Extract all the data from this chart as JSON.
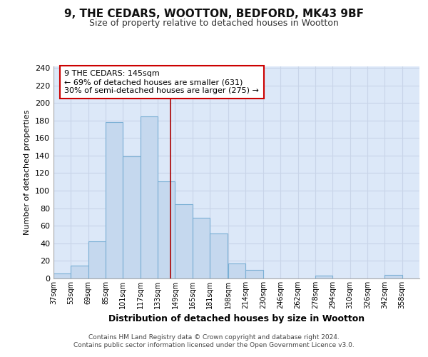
{
  "title": "9, THE CEDARS, WOOTTON, BEDFORD, MK43 9BF",
  "subtitle": "Size of property relative to detached houses in Wootton",
  "xlabel": "Distribution of detached houses by size in Wootton",
  "ylabel": "Number of detached properties",
  "bin_labels": [
    "37sqm",
    "53sqm",
    "69sqm",
    "85sqm",
    "101sqm",
    "117sqm",
    "133sqm",
    "149sqm",
    "165sqm",
    "181sqm",
    "198sqm",
    "214sqm",
    "230sqm",
    "246sqm",
    "262sqm",
    "278sqm",
    "294sqm",
    "310sqm",
    "326sqm",
    "342sqm",
    "358sqm"
  ],
  "bin_edges": [
    37,
    53,
    69,
    85,
    101,
    117,
    133,
    149,
    165,
    181,
    198,
    214,
    230,
    246,
    262,
    278,
    294,
    310,
    326,
    342,
    358
  ],
  "bar_heights": [
    6,
    15,
    42,
    178,
    139,
    185,
    111,
    85,
    69,
    51,
    17,
    10,
    0,
    0,
    0,
    3,
    0,
    0,
    0,
    4,
    0
  ],
  "bar_color": "#c5d8ee",
  "bar_edge_color": "#7aafd4",
  "vline_x": 145,
  "vline_color": "#aa0000",
  "ylim": [
    0,
    242
  ],
  "yticks": [
    0,
    20,
    40,
    60,
    80,
    100,
    120,
    140,
    160,
    180,
    200,
    220,
    240
  ],
  "annotation_title": "9 THE CEDARS: 145sqm",
  "annotation_line1": "← 69% of detached houses are smaller (631)",
  "annotation_line2": "30% of semi-detached houses are larger (275) →",
  "annotation_box_color": "#ffffff",
  "annotation_box_edge": "#cc0000",
  "footer_line1": "Contains HM Land Registry data © Crown copyright and database right 2024.",
  "footer_line2": "Contains public sector information licensed under the Open Government Licence v3.0.",
  "grid_color": "#c8d4e8",
  "plot_background": "#dce8f8"
}
